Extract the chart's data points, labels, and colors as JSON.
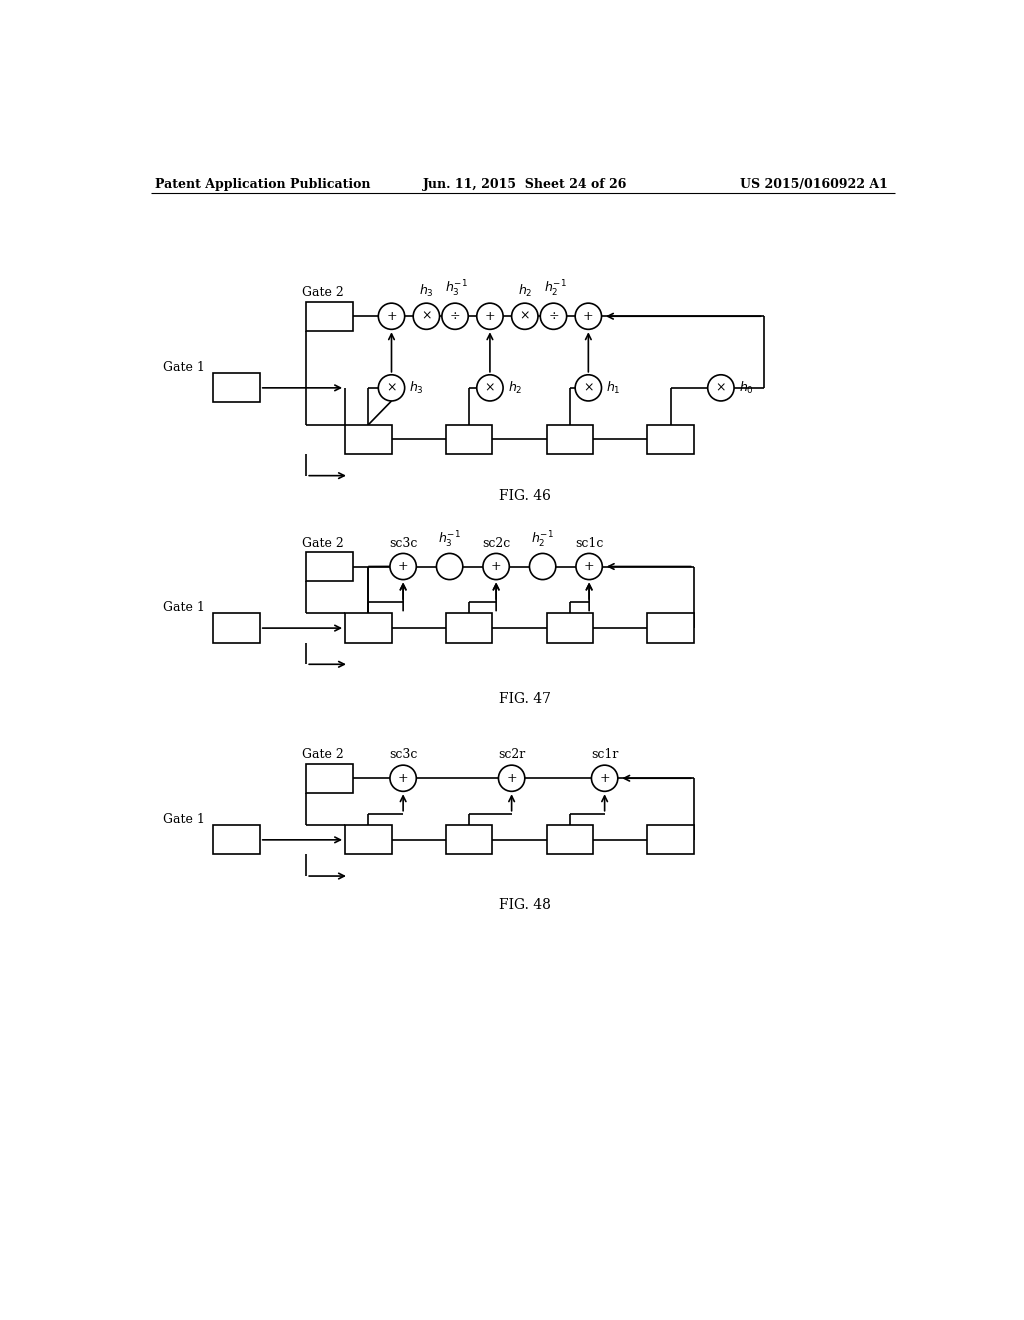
{
  "header_left": "Patent Application Publication",
  "header_mid": "Jun. 11, 2015  Sheet 24 of 26",
  "header_right": "US 2015/0160922 A1",
  "fig46_title": "FIG. 46",
  "fig47_title": "FIG. 47",
  "fig48_title": "FIG. 48",
  "bg_color": "#ffffff",
  "line_color": "#000000",
  "text_color": "#000000"
}
